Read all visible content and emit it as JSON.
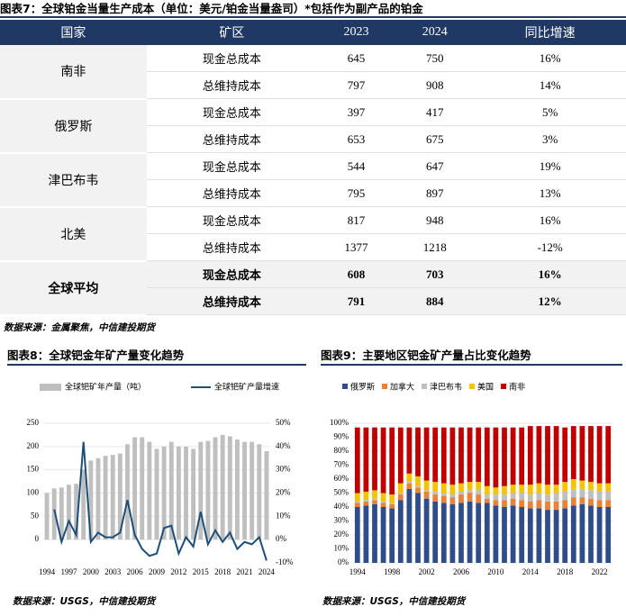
{
  "table_title": "图表7：全球铂金当量生产成本（单位：美元/铂金当量盎司）*包括作为副产品的铂金",
  "table": {
    "header": [
      "国家",
      "矿区",
      "2023",
      "2024",
      "同比增速"
    ],
    "groups": [
      {
        "country": "南非",
        "rows": [
          [
            "现金总成本",
            645,
            750,
            "16%"
          ],
          [
            "总维持成本",
            797,
            908,
            "14%"
          ]
        ]
      },
      {
        "country": "俄罗斯",
        "rows": [
          [
            "现金总成本",
            397,
            417,
            "5%"
          ],
          [
            "总维持成本",
            653,
            675,
            "3%"
          ]
        ]
      },
      {
        "country": "津巴布韦",
        "rows": [
          [
            "现金总成本",
            544,
            647,
            "19%"
          ],
          [
            "总维持成本",
            795,
            897,
            "13%"
          ]
        ]
      },
      {
        "country": "北美",
        "rows": [
          [
            "现金总成本",
            817,
            948,
            "16%"
          ],
          [
            "总维持成本",
            1377,
            1218,
            "-12%"
          ]
        ]
      },
      {
        "country": "全球平均",
        "rows": [
          [
            "现金总成本",
            608,
            703,
            "16%"
          ],
          [
            "总维持成本",
            791,
            884,
            "12%"
          ]
        ]
      }
    ]
  },
  "table_source": "数据来源：金属聚焦，中信建投期货",
  "chart_data": [
    {
      "type": "bar",
      "title": "图表8：全球钯金年矿产量变化趋势",
      "source": "数据来源：USGS，中信建投期货",
      "grid": true,
      "categories": [
        "1994",
        null,
        null,
        "1997",
        null,
        null,
        "2000",
        null,
        null,
        "2003",
        null,
        null,
        "2006",
        null,
        null,
        "2009",
        null,
        null,
        "2012",
        null,
        null,
        "2015",
        null,
        null,
        "2018",
        null,
        null,
        "2021",
        null,
        null,
        "2024"
      ],
      "series": [
        {
          "name": "全球钯矿年产量（吨）",
          "color": "#bfbfbf",
          "values": [
            100,
            110,
            112,
            118,
            120,
            150,
            170,
            175,
            180,
            182,
            185,
            205,
            220,
            220,
            210,
            195,
            200,
            210,
            200,
            200,
            195,
            210,
            212,
            220,
            225,
            222,
            215,
            210,
            210,
            205,
            190
          ]
        },
        {
          "name": "全球钯矿产量增速",
          "type": "line",
          "axis": "y2",
          "color": "#1f4e79",
          "values": [
            null,
            13,
            -1,
            8,
            2,
            42,
            -1,
            3,
            1,
            1,
            3,
            17,
            2,
            -4,
            -7,
            -6,
            5,
            6,
            -6,
            1,
            -3,
            12,
            -2,
            4,
            -1,
            3,
            -4,
            -1,
            -2,
            1,
            -9
          ]
        }
      ],
      "ylim": [
        -50,
        250
      ],
      "yticks": [
        0,
        50,
        100,
        150,
        200,
        250
      ],
      "y2lim": [
        -10,
        50
      ],
      "y2ticks": [
        {
          "value": -10,
          "label": "-10%"
        },
        {
          "value": 0,
          "label": "0%"
        },
        {
          "value": 10,
          "label": "10%"
        },
        {
          "value": 20,
          "label": "20%"
        },
        {
          "value": 30,
          "label": "30%"
        },
        {
          "value": 40,
          "label": "40%"
        },
        {
          "value": 50,
          "label": "50%"
        }
      ]
    },
    {
      "type": "stacked_bar",
      "title": "图表9：主要地区钯金矿产量占比变化趋势",
      "source": "数据来源：USGS，中信建投期货",
      "grid": true,
      "categories": [
        "1994",
        null,
        null,
        null,
        "1998",
        null,
        null,
        null,
        "2002",
        null,
        null,
        null,
        "2006",
        null,
        null,
        null,
        "2010",
        null,
        null,
        null,
        "2014",
        null,
        null,
        null,
        "2018",
        null,
        null,
        null,
        "2022",
        null
      ],
      "series": [
        {
          "name": "俄罗斯",
          "color": "#2e4d8a",
          "values": [
            40,
            41,
            42,
            40,
            39,
            45,
            53,
            50,
            46,
            44,
            43,
            42,
            43,
            44,
            43,
            43,
            41,
            40,
            41,
            40,
            39,
            39,
            38,
            38,
            39,
            41,
            42,
            41,
            40,
            40
          ]
        },
        {
          "name": "加拿大",
          "color": "#e8823a",
          "values": [
            3,
            3,
            3,
            3,
            3,
            4,
            4,
            4,
            5,
            5,
            5,
            5,
            6,
            6,
            6,
            3,
            4,
            5,
            5,
            5,
            5,
            6,
            6,
            6,
            6,
            6,
            5,
            5,
            5,
            5
          ]
        },
        {
          "name": "津巴布韦",
          "color": "#bfbfbf",
          "values": [
            1,
            1,
            1,
            1,
            1,
            1,
            1,
            1,
            1,
            2,
            2,
            2,
            2,
            2,
            3,
            3,
            4,
            4,
            4,
            5,
            5,
            5,
            5,
            6,
            6,
            6,
            6,
            6,
            6,
            6
          ]
        },
        {
          "name": "美国",
          "color": "#f5c400",
          "values": [
            6,
            6,
            6,
            6,
            6,
            7,
            6,
            7,
            7,
            7,
            7,
            7,
            6,
            6,
            6,
            6,
            5,
            6,
            6,
            6,
            7,
            7,
            7,
            6,
            7,
            7,
            6,
            6,
            6,
            6
          ]
        },
        {
          "name": "南非",
          "color": "#c00000",
          "values": [
            47,
            46,
            45,
            47,
            48,
            40,
            33,
            35,
            38,
            39,
            40,
            41,
            40,
            39,
            39,
            42,
            43,
            42,
            41,
            41,
            42,
            41,
            42,
            42,
            39,
            38,
            39,
            40,
            41,
            41
          ]
        }
      ],
      "ylim": [
        0,
        100
      ],
      "yticks": [
        {
          "value": 0,
          "label": "0%"
        },
        {
          "value": 10,
          "label": "10%"
        },
        {
          "value": 20,
          "label": "20%"
        },
        {
          "value": 30,
          "label": "30%"
        },
        {
          "value": 40,
          "label": "40%"
        },
        {
          "value": 50,
          "label": "50%"
        },
        {
          "value": 60,
          "label": "60%"
        },
        {
          "value": 70,
          "label": "70%"
        },
        {
          "value": 80,
          "label": "80%"
        },
        {
          "value": 90,
          "label": "90%"
        },
        {
          "value": 100,
          "label": "100%"
        }
      ]
    }
  ]
}
